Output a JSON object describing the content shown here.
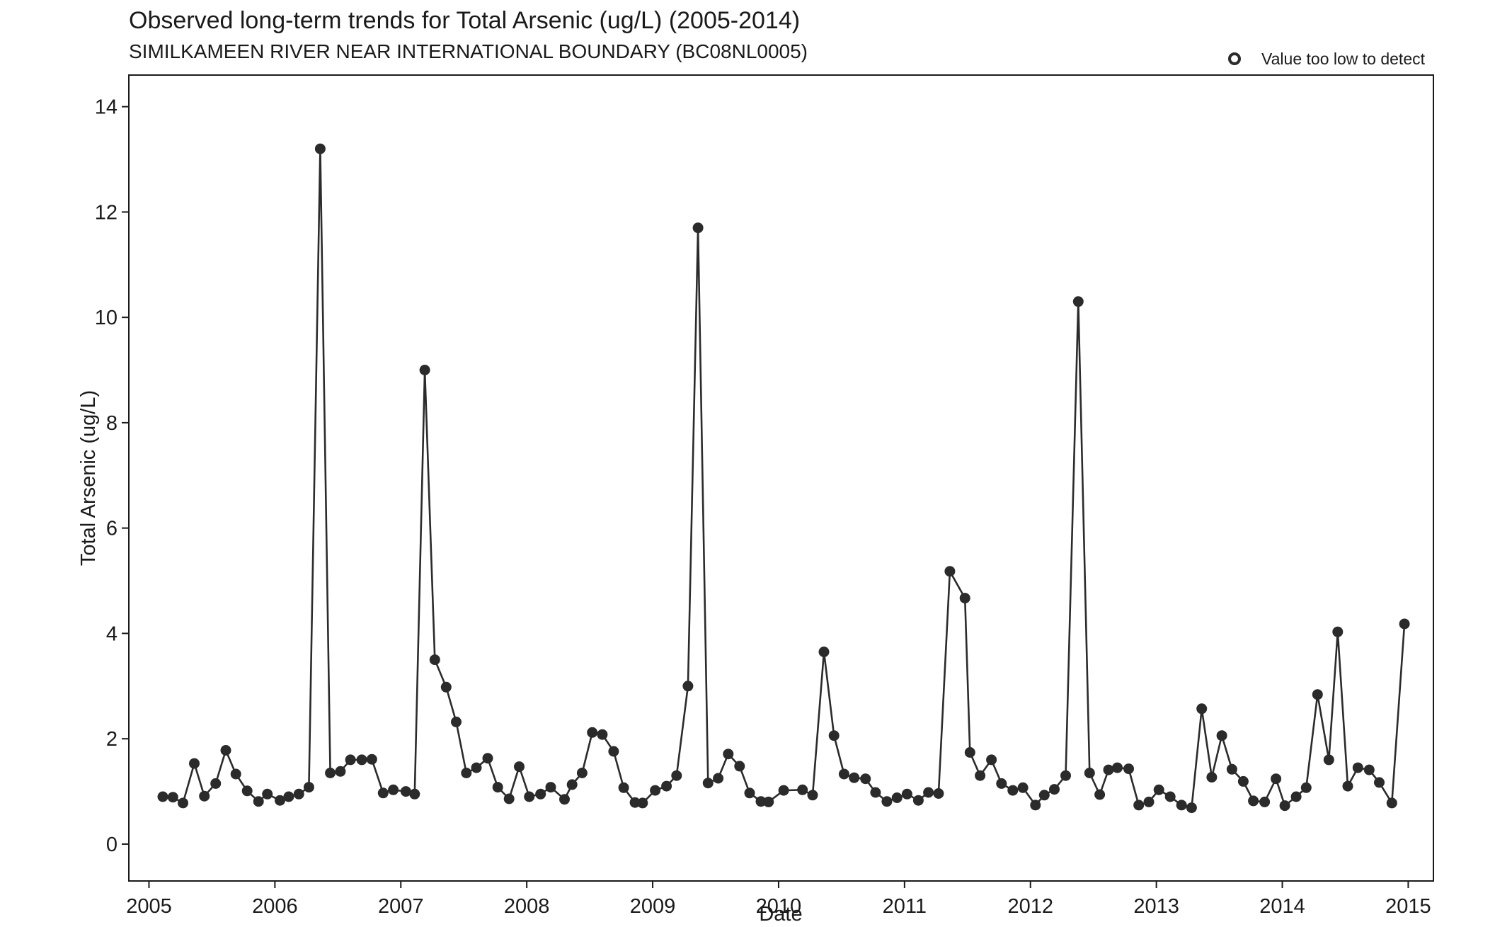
{
  "chart_data": {
    "type": "line",
    "title": "Observed long-term trends for Total Arsenic (ug/L) (2005-2014)",
    "subtitle": "SIMILKAMEEN RIVER NEAR INTERNATIONAL BOUNDARY (BC08NL0005)",
    "xlabel": "Date",
    "ylabel": "Total Arsenic (ug/L)",
    "xlim": [
      2004.84,
      2015.2
    ],
    "ylim": [
      -0.7,
      14.6
    ],
    "x_ticks": [
      2005,
      2006,
      2007,
      2008,
      2009,
      2010,
      2011,
      2012,
      2013,
      2014,
      2015
    ],
    "x_tick_labels": [
      "2005",
      "2006",
      "2007",
      "2008",
      "2009",
      "2010",
      "2011",
      "2012",
      "2013",
      "2014",
      "2015"
    ],
    "y_ticks": [
      0,
      2,
      4,
      6,
      8,
      10,
      12,
      14
    ],
    "y_tick_labels": [
      "0",
      "2",
      "4",
      "6",
      "8",
      "10",
      "12",
      "14"
    ],
    "grid": false,
    "legend": {
      "placement": "top-right",
      "entries": [
        {
          "label": "Value too low to detect",
          "marker": "open-circle"
        }
      ]
    },
    "colors": {
      "series": "#2b2b2b",
      "axis": "#1a1a1a"
    },
    "series": [
      {
        "values": [
          [
            2005.11,
            0.9
          ],
          [
            2005.19,
            0.89
          ],
          [
            2005.27,
            0.78
          ],
          [
            2005.36,
            1.53
          ],
          [
            2005.44,
            0.91
          ],
          [
            2005.53,
            1.15
          ],
          [
            2005.61,
            1.78
          ],
          [
            2005.69,
            1.33
          ],
          [
            2005.78,
            1.01
          ],
          [
            2005.87,
            0.81
          ],
          [
            2005.94,
            0.95
          ],
          [
            2006.04,
            0.83
          ],
          [
            2006.11,
            0.9
          ],
          [
            2006.19,
            0.95
          ],
          [
            2006.27,
            1.08
          ],
          [
            2006.36,
            13.2
          ],
          [
            2006.44,
            1.35
          ],
          [
            2006.52,
            1.38
          ],
          [
            2006.6,
            1.6
          ],
          [
            2006.69,
            1.6
          ],
          [
            2006.77,
            1.61
          ],
          [
            2006.86,
            0.97
          ],
          [
            2006.94,
            1.03
          ],
          [
            2007.04,
            1.0
          ],
          [
            2007.11,
            0.95
          ],
          [
            2007.19,
            9.0
          ],
          [
            2007.27,
            3.5
          ],
          [
            2007.36,
            2.98
          ],
          [
            2007.44,
            2.32
          ],
          [
            2007.52,
            1.35
          ],
          [
            2007.6,
            1.45
          ],
          [
            2007.69,
            1.63
          ],
          [
            2007.77,
            1.08
          ],
          [
            2007.86,
            0.86
          ],
          [
            2007.94,
            1.47
          ],
          [
            2008.02,
            0.9
          ],
          [
            2008.11,
            0.95
          ],
          [
            2008.19,
            1.08
          ],
          [
            2008.3,
            0.85
          ],
          [
            2008.36,
            1.13
          ],
          [
            2008.44,
            1.35
          ],
          [
            2008.52,
            2.12
          ],
          [
            2008.6,
            2.08
          ],
          [
            2008.69,
            1.76
          ],
          [
            2008.77,
            1.07
          ],
          [
            2008.86,
            0.79
          ],
          [
            2008.92,
            0.78
          ],
          [
            2009.02,
            1.02
          ],
          [
            2009.11,
            1.1
          ],
          [
            2009.19,
            1.3
          ],
          [
            2009.28,
            3.0
          ],
          [
            2009.36,
            11.7
          ],
          [
            2009.44,
            1.16
          ],
          [
            2009.52,
            1.25
          ],
          [
            2009.6,
            1.71
          ],
          [
            2009.69,
            1.48
          ],
          [
            2009.77,
            0.97
          ],
          [
            2009.86,
            0.81
          ],
          [
            2009.92,
            0.8
          ],
          [
            2010.04,
            1.02
          ],
          [
            2010.19,
            1.03
          ],
          [
            2010.27,
            0.93
          ],
          [
            2010.36,
            3.65
          ],
          [
            2010.44,
            2.06
          ],
          [
            2010.52,
            1.33
          ],
          [
            2010.6,
            1.26
          ],
          [
            2010.69,
            1.24
          ],
          [
            2010.77,
            0.98
          ],
          [
            2010.86,
            0.81
          ],
          [
            2010.94,
            0.88
          ],
          [
            2011.02,
            0.95
          ],
          [
            2011.11,
            0.83
          ],
          [
            2011.19,
            0.98
          ],
          [
            2011.27,
            0.96
          ],
          [
            2011.36,
            5.18
          ],
          [
            2011.48,
            4.67
          ],
          [
            2011.52,
            1.74
          ],
          [
            2011.6,
            1.3
          ],
          [
            2011.69,
            1.6
          ],
          [
            2011.77,
            1.15
          ],
          [
            2011.86,
            1.02
          ],
          [
            2011.94,
            1.07
          ],
          [
            2012.04,
            0.74
          ],
          [
            2012.11,
            0.93
          ],
          [
            2012.19,
            1.04
          ],
          [
            2012.28,
            1.3
          ],
          [
            2012.38,
            10.3
          ],
          [
            2012.47,
            1.35
          ],
          [
            2012.55,
            0.94
          ],
          [
            2012.62,
            1.41
          ],
          [
            2012.69,
            1.45
          ],
          [
            2012.78,
            1.43
          ],
          [
            2012.86,
            0.74
          ],
          [
            2012.94,
            0.8
          ],
          [
            2013.02,
            1.03
          ],
          [
            2013.11,
            0.9
          ],
          [
            2013.2,
            0.74
          ],
          [
            2013.28,
            0.69
          ],
          [
            2013.36,
            2.57
          ],
          [
            2013.44,
            1.27
          ],
          [
            2013.52,
            2.06
          ],
          [
            2013.6,
            1.42
          ],
          [
            2013.69,
            1.19
          ],
          [
            2013.77,
            0.82
          ],
          [
            2013.86,
            0.8
          ],
          [
            2013.95,
            1.24
          ],
          [
            2014.02,
            0.73
          ],
          [
            2014.11,
            0.9
          ],
          [
            2014.19,
            1.07
          ],
          [
            2014.28,
            2.84
          ],
          [
            2014.37,
            1.6
          ],
          [
            2014.44,
            4.03
          ],
          [
            2014.52,
            1.1
          ],
          [
            2014.6,
            1.45
          ],
          [
            2014.69,
            1.41
          ],
          [
            2014.77,
            1.17
          ],
          [
            2014.87,
            0.78
          ],
          [
            2014.97,
            4.18
          ]
        ],
        "nondetect": []
      }
    ]
  }
}
